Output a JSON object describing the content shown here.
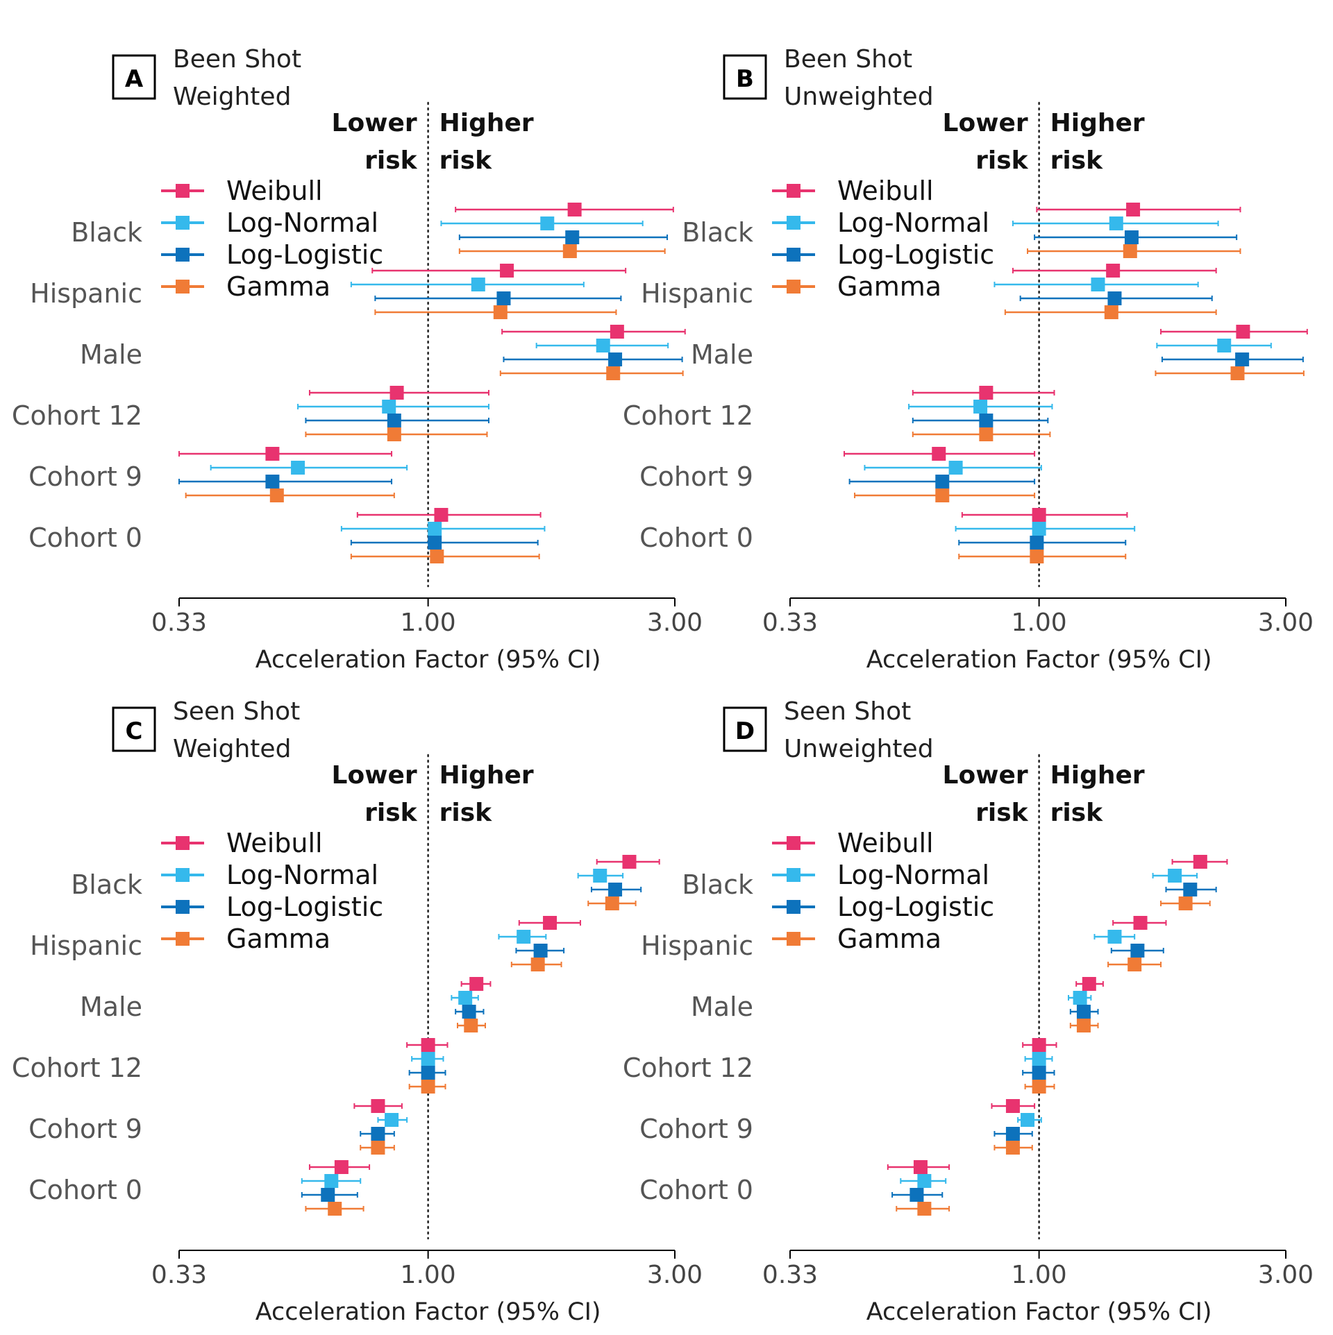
{
  "chart_data": [
    {
      "type": "forest",
      "panel_label": "A",
      "title_lines": [
        "Been Shot",
        "Weighted"
      ],
      "risk_labels": {
        "lower": [
          "Lower",
          "risk"
        ],
        "higher": [
          "Higher",
          "risk"
        ]
      },
      "xlabel": "Acceleration Factor (95% CI)",
      "x_scale": "log",
      "xlim": [
        0.33,
        3.0
      ],
      "x_ticks": [
        "0.33",
        "1.00",
        "3.00"
      ],
      "reference_line": 1.0,
      "categories": [
        "Black",
        "Hispanic",
        "Male",
        "Cohort 12",
        "Cohort 9",
        "Cohort 0"
      ],
      "series": [
        {
          "name": "Weibull",
          "color": "#e8336f",
          "estimate": [
            1.92,
            1.42,
            2.32,
            0.87,
            0.5,
            1.06
          ],
          "lower": [
            1.13,
            0.78,
            1.39,
            0.59,
            0.33,
            0.73
          ],
          "upper": [
            2.98,
            2.41,
            3.14,
            1.31,
            0.85,
            1.65
          ]
        },
        {
          "name": "Log-Normal",
          "color": "#35b9ec",
          "estimate": [
            1.7,
            1.25,
            2.18,
            0.84,
            0.56,
            1.03
          ],
          "lower": [
            1.06,
            0.71,
            1.62,
            0.56,
            0.38,
            0.68
          ],
          "upper": [
            2.6,
            2.0,
            2.91,
            1.31,
            0.91,
            1.68
          ]
        },
        {
          "name": "Log-Logistic",
          "color": "#0d72bc",
          "estimate": [
            1.9,
            1.4,
            2.3,
            0.86,
            0.5,
            1.03
          ],
          "lower": [
            1.15,
            0.79,
            1.4,
            0.58,
            0.33,
            0.71
          ],
          "upper": [
            2.9,
            2.36,
            3.1,
            1.31,
            0.85,
            1.63
          ]
        },
        {
          "name": "Gamma",
          "color": "#f07b36",
          "estimate": [
            1.88,
            1.38,
            2.28,
            0.86,
            0.51,
            1.04
          ],
          "lower": [
            1.15,
            0.79,
            1.38,
            0.58,
            0.34,
            0.71
          ],
          "upper": [
            2.87,
            2.31,
            3.11,
            1.3,
            0.86,
            1.64
          ]
        }
      ]
    },
    {
      "type": "forest",
      "panel_label": "B",
      "title_lines": [
        "Been Shot",
        "Unweighted"
      ],
      "risk_labels": {
        "lower": [
          "Lower",
          "risk"
        ],
        "higher": [
          "Higher",
          "risk"
        ]
      },
      "xlabel": "Acceleration Factor (95% CI)",
      "x_scale": "log",
      "xlim": [
        0.33,
        3.0
      ],
      "x_ticks": [
        "0.33",
        "1.00",
        "3.00"
      ],
      "reference_line": 1.0,
      "categories": [
        "Black",
        "Hispanic",
        "Male",
        "Cohort 12",
        "Cohort 9",
        "Cohort 0"
      ],
      "series": [
        {
          "name": "Weibull",
          "color": "#e8336f",
          "estimate": [
            1.52,
            1.39,
            2.48,
            0.79,
            0.64,
            1.0
          ],
          "lower": [
            0.99,
            0.89,
            1.72,
            0.57,
            0.42,
            0.71
          ],
          "upper": [
            2.45,
            2.2,
            3.3,
            1.07,
            0.98,
            1.48
          ]
        },
        {
          "name": "Log-Normal",
          "color": "#35b9ec",
          "estimate": [
            1.41,
            1.3,
            2.28,
            0.77,
            0.69,
            1.0
          ],
          "lower": [
            0.89,
            0.82,
            1.69,
            0.56,
            0.46,
            0.69
          ],
          "upper": [
            2.22,
            2.03,
            2.81,
            1.06,
            1.01,
            1.53
          ]
        },
        {
          "name": "Log-Logistic",
          "color": "#0d72bc",
          "estimate": [
            1.51,
            1.4,
            2.47,
            0.79,
            0.65,
            0.99
          ],
          "lower": [
            0.98,
            0.92,
            1.73,
            0.57,
            0.43,
            0.7
          ],
          "upper": [
            2.41,
            2.16,
            3.24,
            1.04,
            0.98,
            1.47
          ]
        },
        {
          "name": "Gamma",
          "color": "#f07b36",
          "estimate": [
            1.5,
            1.38,
            2.42,
            0.79,
            0.65,
            0.99
          ],
          "lower": [
            0.95,
            0.86,
            1.68,
            0.57,
            0.44,
            0.7
          ],
          "upper": [
            2.45,
            2.2,
            3.25,
            1.05,
            0.98,
            1.47
          ]
        }
      ]
    },
    {
      "type": "forest",
      "panel_label": "C",
      "title_lines": [
        "Seen Shot",
        "Weighted"
      ],
      "risk_labels": {
        "lower": [
          "Lower",
          "risk"
        ],
        "higher": [
          "Higher",
          "risk"
        ]
      },
      "xlabel": "Acceleration Factor (95% CI)",
      "x_scale": "log",
      "xlim": [
        0.33,
        3.0
      ],
      "x_ticks": [
        "0.33",
        "1.00",
        "3.00"
      ],
      "reference_line": 1.0,
      "categories": [
        "Black",
        "Hispanic",
        "Male",
        "Cohort 12",
        "Cohort 9",
        "Cohort 0"
      ],
      "series": [
        {
          "name": "Weibull",
          "color": "#e8336f",
          "estimate": [
            2.45,
            1.72,
            1.24,
            1.0,
            0.8,
            0.68
          ],
          "lower": [
            2.12,
            1.5,
            1.16,
            0.91,
            0.72,
            0.59
          ],
          "upper": [
            2.8,
            1.97,
            1.32,
            1.09,
            0.89,
            0.77
          ]
        },
        {
          "name": "Log-Normal",
          "color": "#35b9ec",
          "estimate": [
            2.15,
            1.53,
            1.18,
            1.0,
            0.85,
            0.65
          ],
          "lower": [
            1.95,
            1.37,
            1.11,
            0.93,
            0.8,
            0.57
          ],
          "upper": [
            2.38,
            1.69,
            1.25,
            1.07,
            0.91,
            0.74
          ]
        },
        {
          "name": "Log-Logistic",
          "color": "#0d72bc",
          "estimate": [
            2.3,
            1.65,
            1.2,
            1.0,
            0.8,
            0.64
          ],
          "lower": [
            2.07,
            1.48,
            1.13,
            0.92,
            0.74,
            0.57
          ],
          "upper": [
            2.58,
            1.83,
            1.28,
            1.08,
            0.86,
            0.73
          ]
        },
        {
          "name": "Gamma",
          "color": "#f07b36",
          "estimate": [
            2.27,
            1.63,
            1.21,
            1.0,
            0.8,
            0.66
          ],
          "lower": [
            2.04,
            1.45,
            1.14,
            0.92,
            0.74,
            0.58
          ],
          "upper": [
            2.52,
            1.81,
            1.29,
            1.08,
            0.86,
            0.75
          ]
        }
      ]
    },
    {
      "type": "forest",
      "panel_label": "D",
      "title_lines": [
        "Seen Shot",
        "Unweighted"
      ],
      "risk_labels": {
        "lower": [
          "Lower",
          "risk"
        ],
        "higher": [
          "Higher",
          "risk"
        ]
      },
      "xlabel": "Acceleration Factor (95% CI)",
      "x_scale": "log",
      "xlim": [
        0.33,
        3.0
      ],
      "x_ticks": [
        "0.33",
        "1.00",
        "3.00"
      ],
      "reference_line": 1.0,
      "categories": [
        "Black",
        "Hispanic",
        "Male",
        "Cohort 12",
        "Cohort 9",
        "Cohort 0"
      ],
      "series": [
        {
          "name": "Weibull",
          "color": "#e8336f",
          "estimate": [
            2.05,
            1.57,
            1.25,
            1.0,
            0.89,
            0.59
          ],
          "lower": [
            1.81,
            1.39,
            1.18,
            0.93,
            0.81,
            0.51
          ],
          "upper": [
            2.31,
            1.76,
            1.33,
            1.08,
            0.98,
            0.67
          ]
        },
        {
          "name": "Log-Normal",
          "color": "#35b9ec",
          "estimate": [
            1.83,
            1.4,
            1.2,
            1.0,
            0.95,
            0.6
          ],
          "lower": [
            1.66,
            1.28,
            1.14,
            0.94,
            0.91,
            0.54
          ],
          "upper": [
            2.02,
            1.53,
            1.26,
            1.06,
            1.01,
            0.66
          ]
        },
        {
          "name": "Log-Logistic",
          "color": "#0d72bc",
          "estimate": [
            1.96,
            1.55,
            1.22,
            1.0,
            0.89,
            0.58
          ],
          "lower": [
            1.76,
            1.38,
            1.15,
            0.93,
            0.82,
            0.52
          ],
          "upper": [
            2.2,
            1.74,
            1.3,
            1.07,
            0.97,
            0.65
          ]
        },
        {
          "name": "Gamma",
          "color": "#f07b36",
          "estimate": [
            1.92,
            1.53,
            1.22,
            1.0,
            0.89,
            0.6
          ],
          "lower": [
            1.72,
            1.36,
            1.15,
            0.94,
            0.82,
            0.53
          ],
          "upper": [
            2.14,
            1.72,
            1.3,
            1.07,
            0.97,
            0.67
          ]
        }
      ]
    }
  ]
}
